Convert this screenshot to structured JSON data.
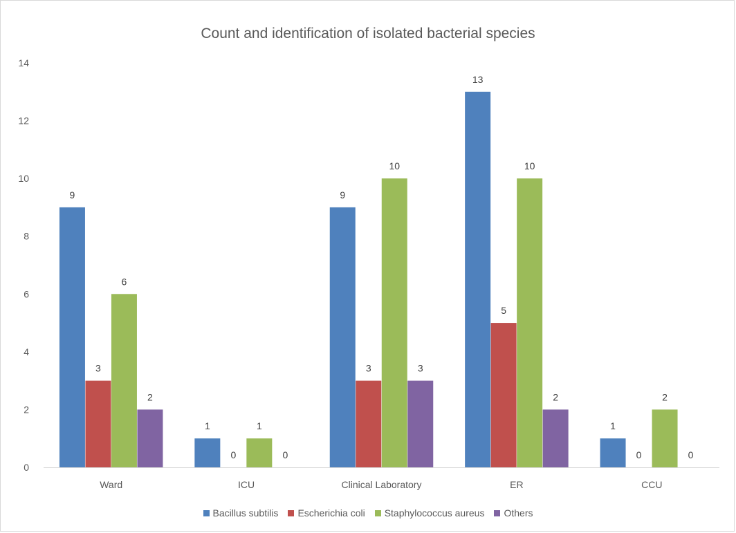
{
  "chart_data": {
    "type": "bar",
    "title": "Count and identification of isolated bacterial species",
    "xlabel": "",
    "ylabel": "",
    "categories": [
      "Ward",
      "ICU",
      "Clinical Laboratory",
      "ER",
      "CCU"
    ],
    "series": [
      {
        "name": "Bacillus subtilis",
        "color": "#4f81bd",
        "values": [
          9,
          1,
          9,
          13,
          1
        ]
      },
      {
        "name": "Escherichia coli",
        "color": "#c0504d",
        "values": [
          3,
          0,
          3,
          5,
          0
        ]
      },
      {
        "name": "Staphylococcus aureus",
        "color": "#9bbb59",
        "values": [
          6,
          1,
          10,
          10,
          2
        ]
      },
      {
        "name": "Others",
        "color": "#8064a2",
        "values": [
          2,
          0,
          3,
          2,
          0
        ]
      }
    ],
    "ylim": [
      0,
      14
    ],
    "yticks": [
      0,
      2,
      4,
      6,
      8,
      10,
      12,
      14
    ],
    "grid": false,
    "data_labels": true,
    "legend_position": "bottom"
  }
}
